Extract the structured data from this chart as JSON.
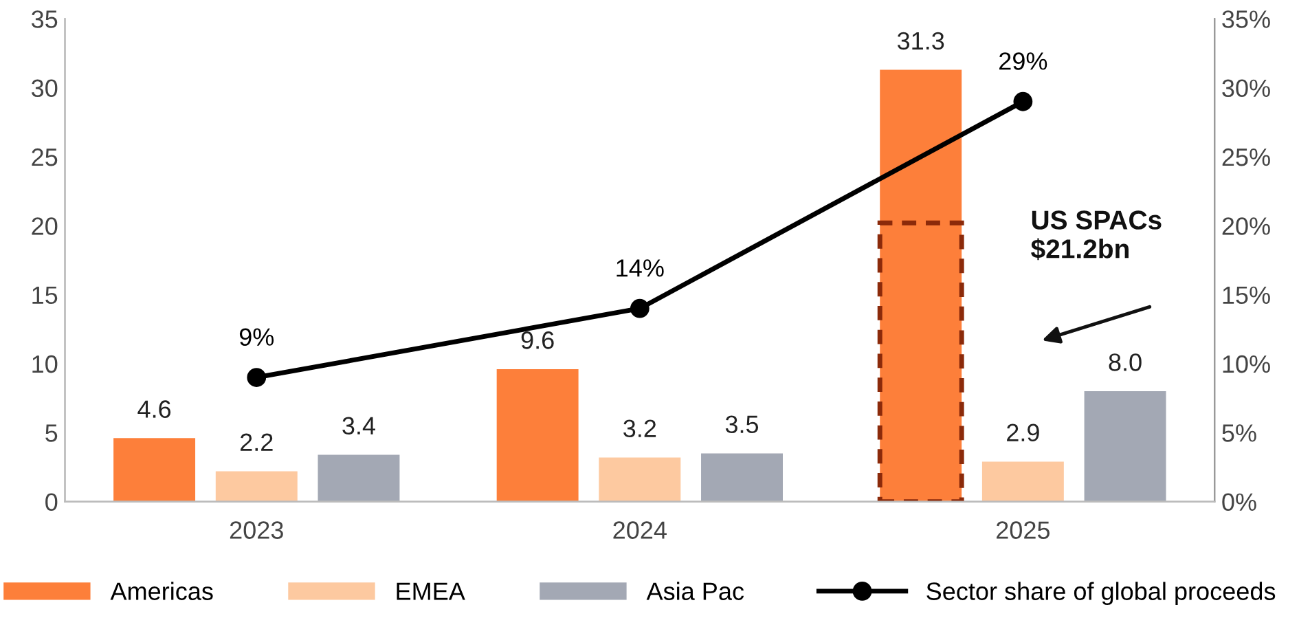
{
  "chart_data": {
    "type": "bar",
    "categories": [
      "2023",
      "2024",
      "2025"
    ],
    "series": [
      {
        "name": "Americas",
        "color": "#fd7f3a",
        "values": [
          4.6,
          9.6,
          31.3
        ],
        "value_labels": [
          "4.6",
          "9.6",
          "31.3"
        ]
      },
      {
        "name": "EMEA",
        "color": "#fdc9a0",
        "values": [
          2.2,
          3.2,
          2.9
        ],
        "value_labels": [
          "2.2",
          "3.2",
          "2.9"
        ]
      },
      {
        "name": "Asia Pac",
        "color": "#a3a8b4",
        "values": [
          3.4,
          3.5,
          8.0
        ],
        "value_labels": [
          "3.4",
          "3.5",
          "8.0"
        ]
      },
      {
        "type": "bar",
        "color": "#8b2a0a",
        "line_style": "dashed",
        "values": [
          null,
          null,
          20.2
        ]
      },
      {
        "name": "Sector share of global proceeds",
        "type": "line",
        "axis": "y2",
        "color": "#000000",
        "marker": "circle",
        "values": [
          9,
          14,
          29
        ],
        "value_labels": [
          "9%",
          "14%",
          "29%"
        ]
      }
    ],
    "ylim": [
      0,
      35
    ],
    "yticks": [
      0,
      5,
      10,
      15,
      20,
      25,
      30,
      35
    ],
    "y2lim": [
      0,
      35
    ],
    "y2ticks": [
      {
        "value": 0,
        "label": "0%"
      },
      {
        "value": 5,
        "label": "5%"
      },
      {
        "value": 10,
        "label": "10%"
      },
      {
        "value": 15,
        "label": "15%"
      },
      {
        "value": 20,
        "label": "20%"
      },
      {
        "value": 25,
        "label": "25%"
      },
      {
        "value": 30,
        "label": "30%"
      },
      {
        "value": 35,
        "label": "35%"
      }
    ],
    "annotations": [
      "US SPACs\n$21.2bn"
    ],
    "grid": false,
    "legend": "bottom"
  }
}
